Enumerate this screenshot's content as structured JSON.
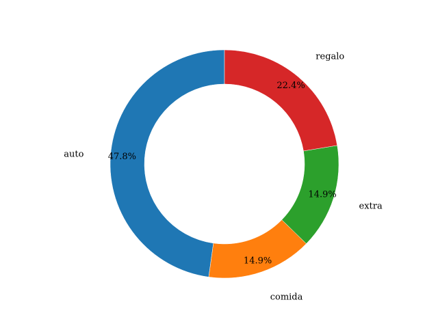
{
  "chart_data": {
    "type": "pie",
    "donut": true,
    "start_angle_deg": 90,
    "direction": "counterclockwise",
    "slices": [
      {
        "label": "auto",
        "value": 47.8,
        "pct_label": "47.8%",
        "color": "#1f77b4"
      },
      {
        "label": "comida",
        "value": 14.9,
        "pct_label": "14.9%",
        "color": "#ff7f0e"
      },
      {
        "label": "extra",
        "value": 14.9,
        "pct_label": "14.9%",
        "color": "#2ca02c"
      },
      {
        "label": "regalo",
        "value": 22.4,
        "pct_label": "22.4%",
        "color": "#d62728"
      }
    ]
  }
}
